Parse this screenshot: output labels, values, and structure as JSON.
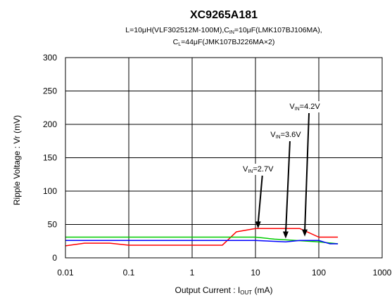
{
  "chart_data": {
    "type": "line",
    "title": "XC9265A181",
    "subtitle_line1": {
      "p1": "L=10μH(VLF302512M-100M),C",
      "sub1": "IN",
      "p2": "=10μF(LMK107BJ106MA),"
    },
    "subtitle_line2": {
      "p1": "C",
      "sub1": "L",
      "p2": "=44μF(JMK107BJ226MA×2)"
    },
    "xlabel": {
      "p1": "Output Current : I",
      "sub": "OUT",
      "p2": " (mA)"
    },
    "ylabel": "Ripple Voltage : Vr (mV)",
    "x_scale": "log",
    "xlim": [
      0.01,
      1000
    ],
    "ylim": [
      0,
      300
    ],
    "x_ticks": [
      "0.01",
      "0.1",
      "1",
      "10",
      "100",
      "1000"
    ],
    "y_ticks": [
      "0",
      "50",
      "100",
      "150",
      "200",
      "250",
      "300"
    ],
    "grid": true,
    "series": [
      {
        "color": "#ff0000",
        "x": [
          0.01,
          0.02,
          0.05,
          0.1,
          1,
          3,
          5,
          10,
          20,
          50,
          100,
          200
        ],
        "y": [
          18,
          22,
          22,
          19,
          19,
          19,
          39,
          44,
          44,
          44,
          31,
          31
        ]
      },
      {
        "color": "#00cc00",
        "x": [
          0.01,
          1,
          10,
          20,
          100,
          200
        ],
        "y": [
          31,
          31,
          31,
          28,
          24,
          21
        ]
      },
      {
        "color": "#0000ff",
        "x": [
          0.01,
          1,
          10,
          30,
          50,
          100,
          150,
          200
        ],
        "y": [
          26,
          26,
          26,
          24,
          26,
          26,
          21,
          21
        ]
      }
    ],
    "annotations": [
      {
        "p1": "V",
        "sub": "IN",
        "p2": "=2.7V",
        "x_target": 11,
        "y_target": 45
      },
      {
        "p1": "V",
        "sub": "IN",
        "p2": "=3.6V",
        "x_target": 30,
        "y_target": 30
      },
      {
        "p1": "V",
        "sub": "IN",
        "p2": "=4.2V",
        "x_target": 60,
        "y_target": 33
      }
    ]
  }
}
